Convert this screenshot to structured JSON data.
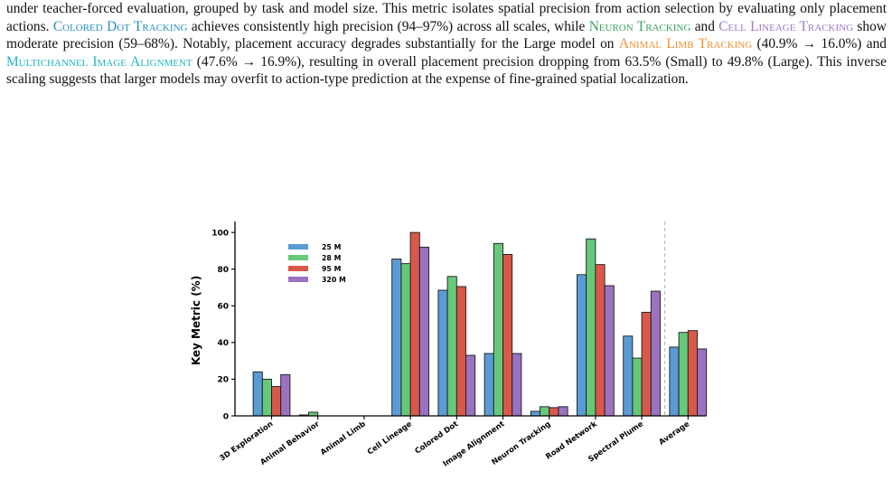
{
  "paragraph": {
    "p1": "under teacher-forced evaluation, grouped by task and model size. This metric isolates spatial precision from action selection by evaluating only placement actions.",
    "t_colored_dot": "Colored Dot Tracking",
    "p2": "achieves consistently high precision (94–97%) across all scales, while",
    "t_neuron": "Neuron Tracking",
    "p3": "and",
    "t_cell": "Cell Lineage Tracking",
    "p4": "show moderate precision (59–68%). Notably, placement accuracy degrades substantially for the Large model on",
    "t_animal": "Animal Limb Tracking",
    "p5": "(40.9% → 16.0%) and",
    "t_multichannel": "Multichannel Image Alignment",
    "p6": "(47.6% → 16.9%), resulting in overall placement precision dropping from 63.5% (Small) to 49.8% (Large). This inverse scaling suggests that larger models may overfit to action-type prediction at the expense of fine-grained spatial localization.",
    "colors": {
      "colored_dot": "#2a8fbf",
      "neuron": "#3aa35a",
      "cell": "#a178c4",
      "animal": "#f0902e",
      "multichannel": "#1fb5c4"
    }
  },
  "chart_data": {
    "type": "bar",
    "ylabel": "Key Metric (%)",
    "xlabel": "",
    "ylim": [
      0,
      105
    ],
    "yticks": [
      0,
      20,
      40,
      60,
      80,
      100
    ],
    "grid": false,
    "legend_placement": "top-left",
    "separator_before_category": "Average",
    "categories": [
      "3D Exploration",
      "Animal Behavior",
      "Animal Limb",
      "Cell Lineage",
      "Colored Dot",
      "Image Alignment",
      "Neuron Tracking",
      "Road Network",
      "Spectral Plume",
      "Average"
    ],
    "series": [
      {
        "name": "25 M",
        "color": "#5b9bd5",
        "values": [
          24,
          0.5,
          0,
          85.5,
          68.5,
          34,
          2.5,
          77,
          43.5,
          37.5
        ]
      },
      {
        "name": "28 M",
        "color": "#66c97a",
        "values": [
          20,
          2,
          0,
          83,
          76,
          94,
          5,
          96.5,
          31.5,
          45.5
        ]
      },
      {
        "name": "95 M",
        "color": "#d9584a",
        "values": [
          16,
          0,
          0,
          100,
          70.5,
          88,
          4.5,
          82.5,
          56.5,
          46.5
        ]
      },
      {
        "name": "320 M",
        "color": "#9b72c0",
        "values": [
          22.5,
          0,
          0,
          92,
          33,
          34,
          5,
          71,
          68,
          36.5
        ]
      }
    ]
  }
}
